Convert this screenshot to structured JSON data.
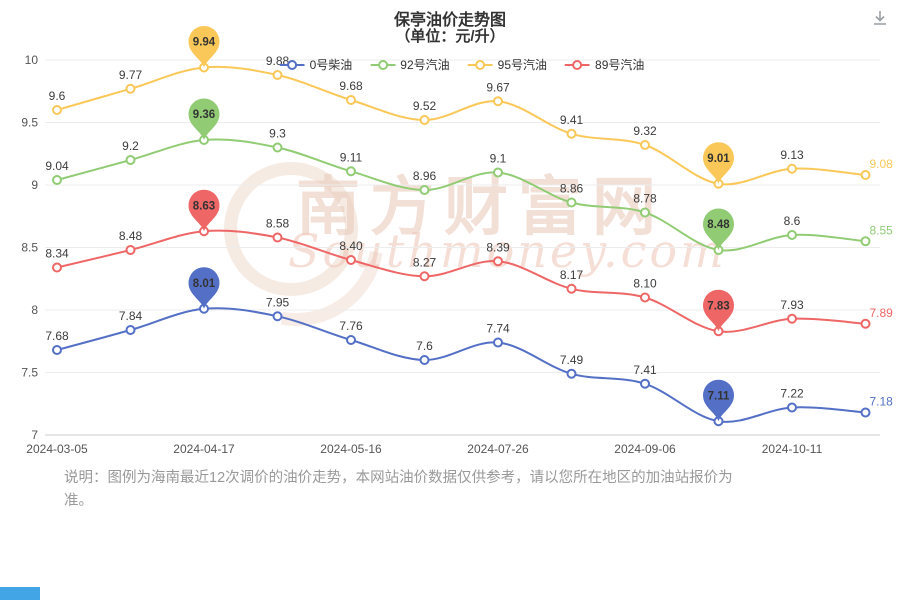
{
  "page": {
    "title": "保亭油价走势图",
    "subtitle": "（单位：元/升）",
    "watermark": {
      "text": "南方财富网",
      "subtext": "Southmoney.com"
    },
    "note_lines": [
      "说明：图例为海南最近12次调价的油价走势，本网站油价数据仅供参考，请以您所在地区的加油站报价为",
      "准。"
    ],
    "icons": {
      "download": "download-arrow-into-tray"
    },
    "accent_color": "#42a5e5"
  },
  "chart_data": {
    "type": "line",
    "title": "保亭油价走势图",
    "subtitle": "（单位：元/升）",
    "legend_position": "top",
    "grid": true,
    "smooth": true,
    "num_points": 12,
    "ylim": [
      7,
      10
    ],
    "y_tick_labels": [
      "7",
      "7.5",
      "8",
      "8.5",
      "9",
      "9.5",
      "10"
    ],
    "x_tick_labels": [
      "2024-03-05",
      "2024-04-17",
      "2024-05-16",
      "2024-07-26",
      "2024-09-06",
      "2024-10-11"
    ],
    "x_tick_point_indices": [
      0,
      2,
      4,
      6,
      8,
      10
    ],
    "series": [
      {
        "name": "0号柴油",
        "color": "#5470c6",
        "values": [
          "7.68",
          "7.84",
          "8.01",
          "7.95",
          "7.76",
          "7.6",
          "7.74",
          "7.49",
          "7.41",
          "7.11",
          "7.22",
          "7.18"
        ],
        "max_pin_index": 2,
        "min_pin_index": 9
      },
      {
        "name": "92号汽油",
        "color": "#91cc75",
        "values": [
          "9.04",
          "9.2",
          "9.36",
          "9.3",
          "9.11",
          "8.96",
          "9.1",
          "8.86",
          "8.78",
          "8.48",
          "8.6",
          "8.55"
        ],
        "max_pin_index": 2,
        "min_pin_index": 9
      },
      {
        "name": "95号汽油",
        "color": "#fac858",
        "values": [
          "9.6",
          "9.77",
          "9.94",
          "9.88",
          "9.68",
          "9.52",
          "9.67",
          "9.41",
          "9.32",
          "9.01",
          "9.13",
          "9.08"
        ],
        "max_pin_index": 2,
        "min_pin_index": 9
      },
      {
        "name": "89号汽油",
        "color": "#ee6666",
        "values": [
          "8.34",
          "8.48",
          "8.63",
          "8.58",
          "8.40",
          "8.27",
          "8.39",
          "8.17",
          "8.10",
          "7.83",
          "7.93",
          "7.89"
        ],
        "max_pin_index": 2,
        "min_pin_index": 9
      }
    ]
  }
}
